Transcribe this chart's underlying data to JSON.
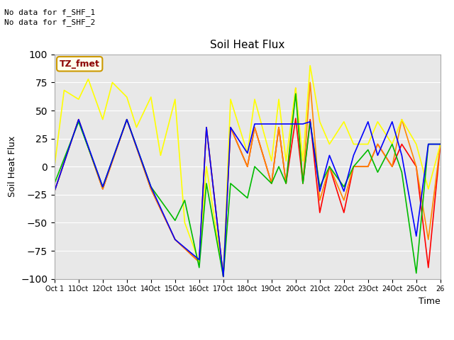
{
  "title": "Soil Heat Flux",
  "ylabel": "Soil Heat Flux",
  "xlabel": "Time",
  "ylim": [
    -100,
    100
  ],
  "bg_color": "#e8e8e8",
  "annotations": [
    "No data for f_SHF_1",
    "No data for f_SHF_2"
  ],
  "tz_label": "TZ_fmet",
  "x_tick_labels": [
    "Oct 1",
    "11Oct",
    "12Oct",
    "13Oct",
    "14Oct",
    "15Oct",
    "16Oct",
    "17Oct",
    "18Oct",
    "19Oct",
    "20Oct",
    "21Oct",
    "22Oct",
    "23Oct",
    "24Oct",
    "25Oct",
    "26"
  ],
  "series": {
    "SHF1": {
      "color": "#ff0000",
      "x": [
        0,
        1,
        2,
        3,
        4,
        5,
        6,
        6.3,
        7,
        7.3,
        8,
        8.3,
        9,
        9.3,
        9.6,
        10,
        10.3,
        10.6,
        11,
        11.4,
        12,
        12.4,
        13,
        13.4,
        14,
        14.4,
        15,
        15.5,
        16
      ],
      "y": [
        -22,
        42,
        -20,
        42,
        -20,
        -65,
        -85,
        35,
        -98,
        35,
        0,
        35,
        -15,
        35,
        -15,
        43,
        -15,
        42,
        -41,
        0,
        -41,
        0,
        0,
        20,
        0,
        20,
        0,
        -90,
        20
      ]
    },
    "SHF2": {
      "color": "#ff8800",
      "x": [
        0,
        1,
        2,
        3,
        4,
        5,
        6,
        6.3,
        7,
        7.3,
        8,
        8.3,
        9,
        9.3,
        9.6,
        10,
        10.3,
        10.6,
        11,
        11.4,
        12,
        12.4,
        13,
        13.4,
        14,
        14.4,
        15,
        15.5,
        16
      ],
      "y": [
        -22,
        42,
        -20,
        42,
        -20,
        -65,
        -85,
        35,
        -98,
        35,
        0,
        35,
        -15,
        35,
        -15,
        70,
        -15,
        75,
        -30,
        0,
        -30,
        0,
        0,
        20,
        0,
        42,
        0,
        -65,
        20
      ]
    },
    "SHF3": {
      "color": "#ffff00",
      "x": [
        0,
        0.4,
        1,
        1.4,
        2,
        2.4,
        3,
        3.4,
        4,
        4.4,
        5,
        5.4,
        6,
        6.3,
        7,
        7.3,
        8,
        8.3,
        9,
        9.3,
        9.6,
        10,
        10.3,
        10.6,
        11,
        11.4,
        12,
        12.4,
        13,
        13.4,
        14,
        14.4,
        15,
        15.5,
        16
      ],
      "y": [
        0,
        68,
        60,
        78,
        42,
        75,
        62,
        35,
        62,
        10,
        60,
        -50,
        -85,
        0,
        -98,
        60,
        12,
        60,
        5,
        60,
        5,
        70,
        5,
        90,
        40,
        20,
        40,
        20,
        20,
        40,
        20,
        42,
        20,
        -20,
        20
      ]
    },
    "SHF4": {
      "color": "#00bb00",
      "x": [
        0,
        1,
        2,
        3,
        4,
        5,
        5.4,
        6,
        6.3,
        7,
        7.3,
        8,
        8.3,
        9,
        9.3,
        9.6,
        10,
        10.3,
        10.6,
        11,
        11.4,
        12,
        12.4,
        13,
        13.4,
        14,
        14.4,
        15,
        15.5,
        16
      ],
      "y": [
        -15,
        40,
        -18,
        42,
        -18,
        -48,
        -30,
        -90,
        -15,
        -98,
        -15,
        -28,
        0,
        -15,
        0,
        -15,
        65,
        -15,
        40,
        -18,
        0,
        -18,
        0,
        15,
        -5,
        20,
        -5,
        -95,
        20,
        20
      ]
    },
    "SHF5": {
      "color": "#0000ff",
      "x": [
        0,
        1,
        2,
        3,
        4,
        5,
        6,
        6.3,
        7,
        7.3,
        8,
        8.3,
        8.6,
        9,
        9.3,
        9.6,
        10,
        10.3,
        10.6,
        11,
        11.4,
        12,
        12.4,
        13,
        13.4,
        14,
        14.4,
        15,
        15.5,
        16
      ],
      "y": [
        -22,
        42,
        -18,
        42,
        -18,
        -65,
        -83,
        35,
        -98,
        35,
        12,
        38,
        38,
        38,
        38,
        38,
        38,
        38,
        40,
        -22,
        10,
        -22,
        10,
        40,
        10,
        40,
        10,
        -62,
        20,
        20
      ]
    }
  }
}
